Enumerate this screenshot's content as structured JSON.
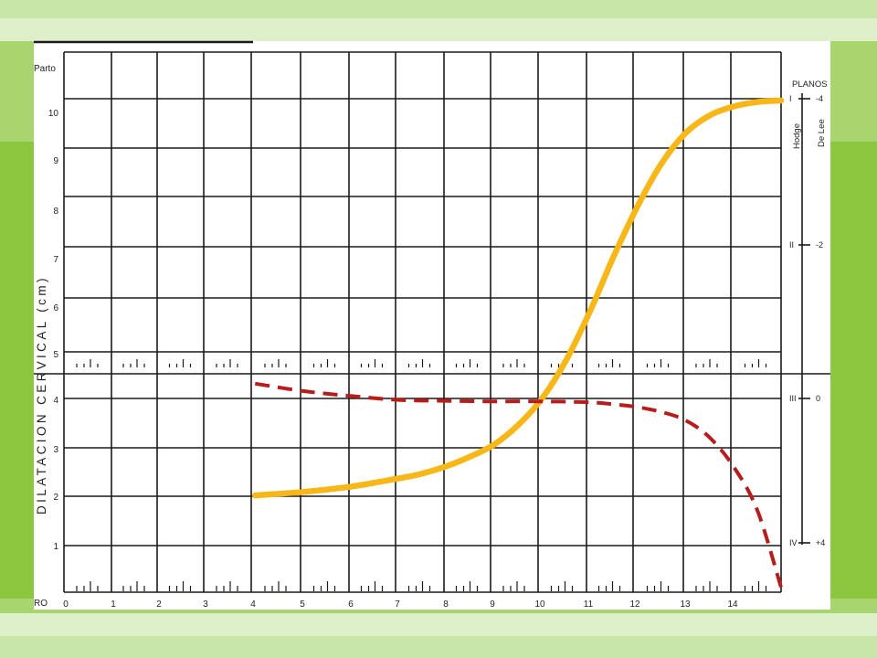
{
  "theme": {
    "background": "#8dc63f",
    "band_colors": [
      "#a9d56e",
      "#c9e6a9",
      "#ddf0c9"
    ],
    "paper": "#ffffff",
    "grid": "#1a1a1a"
  },
  "chart_data": {
    "type": "line",
    "ylabel": "DILATACION CERVICAL (cm)",
    "ylim": [
      0,
      11
    ],
    "xlim": [
      0,
      15
    ],
    "grid": true,
    "x_tick_labels": [
      "0",
      "1",
      "2",
      "3",
      "4",
      "5",
      "6",
      "7",
      "8",
      "9",
      "10",
      "11",
      "12",
      "13",
      "14"
    ],
    "y_tick_labels": [
      "1",
      "2",
      "3",
      "4",
      "5",
      "6",
      "7",
      "8",
      "9",
      "10"
    ],
    "y_top_label": "Parto",
    "x_origin_label": "RO",
    "right_axis": {
      "title": "PLANOS",
      "hodge_label": "Hodge",
      "delee_label": "De Lee",
      "hodge_ticks": [
        {
          "label": "I",
          "y": 10
        },
        {
          "label": "II",
          "y": 7
        },
        {
          "label": "III",
          "y": 4
        },
        {
          "label": "IV",
          "y": 1
        }
      ],
      "delee_ticks": [
        {
          "label": "-4",
          "y": 10
        },
        {
          "label": "-2",
          "y": 7
        },
        {
          "label": "0",
          "y": 4
        },
        {
          "label": "+4",
          "y": 1
        }
      ]
    },
    "series": [
      {
        "style": "solid",
        "color": "#f7b718",
        "x": [
          4,
          5,
          6,
          7,
          7.5,
          8,
          8.5,
          9,
          9.5,
          10,
          10.5,
          11,
          11.5,
          12,
          12.5,
          13,
          13.5,
          14,
          14.5,
          15
        ],
        "y": [
          2,
          2.07,
          2.18,
          2.35,
          2.45,
          2.6,
          2.8,
          3.05,
          3.45,
          4.0,
          4.8,
          5.8,
          6.9,
          7.9,
          8.75,
          9.35,
          9.7,
          9.88,
          9.97,
          10.0
        ]
      },
      {
        "style": "dashed",
        "color": "#b81d1d",
        "x": [
          4,
          5,
          6,
          7,
          8,
          9,
          10,
          11,
          11.5,
          12,
          12.5,
          13,
          13.5,
          14,
          14.5,
          15
        ],
        "y": [
          4.3,
          4.15,
          4.05,
          3.97,
          3.95,
          3.94,
          3.94,
          3.92,
          3.88,
          3.82,
          3.72,
          3.55,
          3.2,
          2.6,
          1.7,
          0.1
        ]
      }
    ]
  }
}
